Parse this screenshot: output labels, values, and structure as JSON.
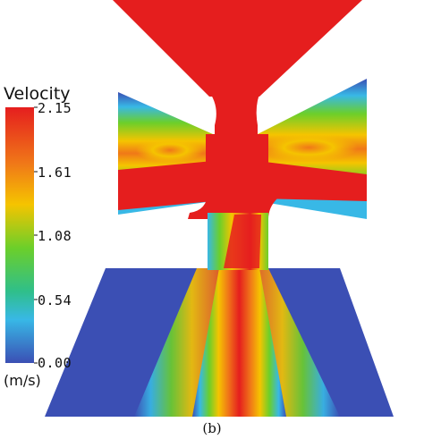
{
  "figure": {
    "caption": "(b)"
  },
  "legend": {
    "title": "Velocity",
    "unit": "(m/s)",
    "ticks": [
      "2.15",
      "1.61",
      "1.08",
      "0.54",
      "0.00"
    ],
    "colors": {
      "max": "#e51e1e",
      "high": "#f5c400",
      "mid": "#6ccf2a",
      "low": "#38b8e6",
      "min": "#3b4fb4"
    }
  }
}
